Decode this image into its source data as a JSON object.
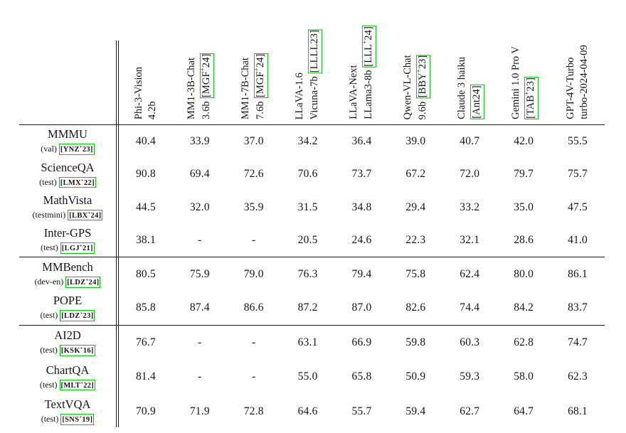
{
  "citation_color": "#00c800",
  "table": {
    "columns": [
      {
        "name": "Phi-3-Vision",
        "sub": "4.2b",
        "cite": ""
      },
      {
        "name": "MM1-3B-Chat",
        "sub": "3.6b",
        "cite": "[MGF+24]"
      },
      {
        "name": "MM1-7B-Chat",
        "sub": "7.6b",
        "cite": "[MGF+24]"
      },
      {
        "name": "LLaVA-1.6",
        "sub": "Vicuna-7b",
        "cite": "[LLLL23]"
      },
      {
        "name": "LLaVA-Next",
        "sub": "LLama3-8b",
        "cite": "[LLL+24]"
      },
      {
        "name": "Qwen-VL-Chat",
        "sub": "9.6b",
        "cite": "[BBY+23]"
      },
      {
        "name": "Claude 3 haiku",
        "sub": "",
        "cite": "[Ant24]"
      },
      {
        "name": "Gemini 1.0 Pro V",
        "sub": "",
        "cite": "[TAB+23]"
      },
      {
        "name": "GPT-4V-Turbo",
        "sub": "turbo-2024-04-09",
        "cite": ""
      }
    ],
    "groups": [
      {
        "rows": [
          {
            "benchmark": "MMMU",
            "split": "(val)",
            "cite": "[YNZ+23]",
            "values": [
              "40.4",
              "33.9",
              "37.0",
              "34.2",
              "36.4",
              "39.0",
              "40.7",
              "42.0",
              "55.5"
            ]
          },
          {
            "benchmark": "ScienceQA",
            "split": "(test)",
            "cite": "[LMX+22]",
            "values": [
              "90.8",
              "69.4",
              "72.6",
              "70.6",
              "73.7",
              "67.2",
              "72.0",
              "79.7",
              "75.7"
            ]
          },
          {
            "benchmark": "MathVista",
            "split": "(testmini)",
            "cite": "[LBX+24]",
            "values": [
              "44.5",
              "32.0",
              "35.9",
              "31.5",
              "34.8",
              "29.4",
              "33.2",
              "35.0",
              "47.5"
            ]
          },
          {
            "benchmark": "Inter-GPS",
            "split": "(test)",
            "cite": "[LGJ+21]",
            "values": [
              "38.1",
              "-",
              "-",
              "20.5",
              "24.6",
              "22.3",
              "32.1",
              "28.6",
              "41.0"
            ]
          }
        ]
      },
      {
        "rows": [
          {
            "benchmark": "MMBench",
            "split": "(dev-en)",
            "cite": "[LDZ+24]",
            "values": [
              "80.5",
              "75.9",
              "79.0",
              "76.3",
              "79.4",
              "75.8",
              "62.4",
              "80.0",
              "86.1"
            ]
          },
          {
            "benchmark": "POPE",
            "split": "(test)",
            "cite": "[LDZ+23]",
            "values": [
              "85.8",
              "87.4",
              "86.6",
              "87.2",
              "87.0",
              "82.6",
              "74.4",
              "84.2",
              "83.7"
            ]
          }
        ]
      },
      {
        "rows": [
          {
            "benchmark": "AI2D",
            "split": "(test)",
            "cite": "[KSK+16]",
            "values": [
              "76.7",
              "-",
              "-",
              "63.1",
              "66.9",
              "59.8",
              "60.3",
              "62.8",
              "74.7"
            ]
          },
          {
            "benchmark": "ChartQA",
            "split": "(test)",
            "cite": "[MLT+22]",
            "values": [
              "81.4",
              "-",
              "-",
              "55.0",
              "65.8",
              "50.9",
              "59.3",
              "58.0",
              "62.3"
            ]
          },
          {
            "benchmark": "TextVQA",
            "split": "(test)",
            "cite": "[SNS+19]",
            "values": [
              "70.9",
              "71.9",
              "72.8",
              "64.6",
              "55.7",
              "59.4",
              "62.7",
              "64.7",
              "68.1"
            ]
          }
        ]
      }
    ]
  }
}
